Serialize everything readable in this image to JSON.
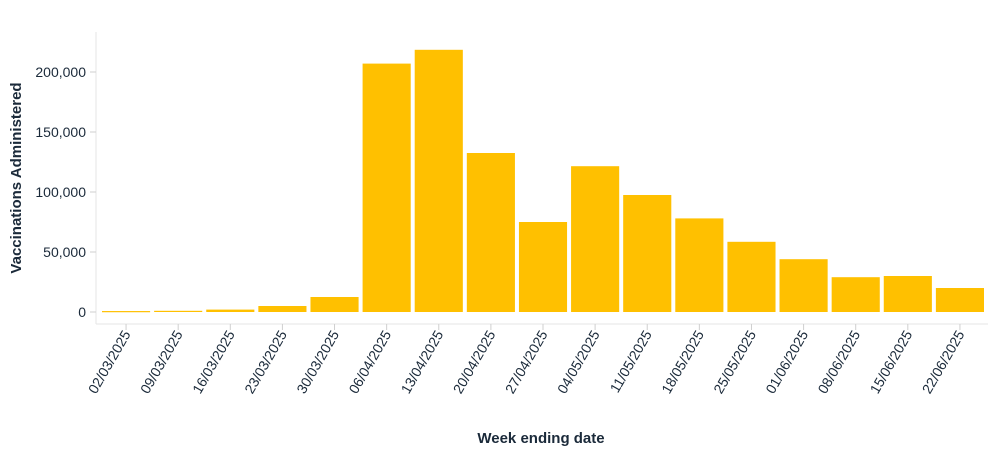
{
  "chart_data": {
    "type": "bar",
    "title": "",
    "xlabel": "Week ending date",
    "ylabel": "Vaccinations Administered",
    "categories": [
      "02/03/2025",
      "09/03/2025",
      "16/03/2025",
      "23/03/2025",
      "30/03/2025",
      "06/04/2025",
      "13/04/2025",
      "20/04/2025",
      "27/04/2025",
      "04/05/2025",
      "11/05/2025",
      "18/05/2025",
      "25/05/2025",
      "01/06/2025",
      "08/06/2025",
      "15/06/2025",
      "22/06/2025"
    ],
    "values": [
      800,
      1000,
      2000,
      5000,
      12500,
      207000,
      218500,
      132500,
      75000,
      121500,
      97500,
      78000,
      58500,
      44000,
      29000,
      30000,
      20000
    ],
    "ylim": [
      0,
      230000
    ],
    "yticks": [
      0,
      50000,
      100000,
      150000,
      200000
    ],
    "ytick_labels": [
      "0",
      "50,000",
      "100,000",
      "150,000",
      "200,000"
    ],
    "bar_color": "#FFC000",
    "grid": false,
    "legend": "none"
  }
}
